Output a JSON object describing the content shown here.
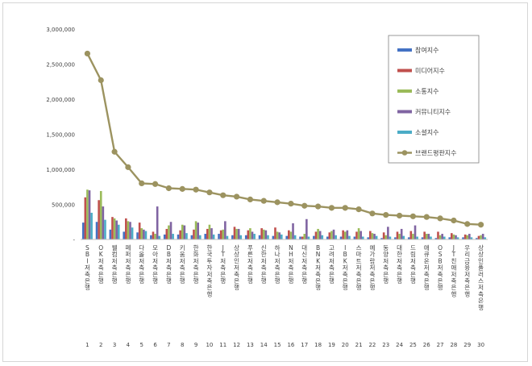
{
  "chart_data": {
    "type": "bar",
    "title": "",
    "xlabel": "",
    "ylabel": "",
    "ylim": [
      0,
      3000000
    ],
    "yticks": [
      0,
      500000,
      1000000,
      1500000,
      2000000,
      2500000,
      3000000
    ],
    "ytick_labels": [
      "-",
      "500,000",
      "1,000,000",
      "1,500,000",
      "2,000,000",
      "2,500,000",
      "3,000,000"
    ],
    "grid": false,
    "legend_position": "top-right",
    "categories": [
      "SBI저축은행",
      "OK저축은행",
      "웰컴저축은행",
      "페퍼저축은행",
      "다올저축은행",
      "모아저축은행",
      "DB저축은행",
      "키움저축은행",
      "한화저축은행",
      "한국투자저축은행",
      "JT저축은행",
      "상상인저축은행",
      "푸른저축은행",
      "신한저축은행",
      "하나저축은행",
      "NH저축은행",
      "대신저축은행",
      "BNK저축은행",
      "고려저축은행",
      "IBK저축은행",
      "스마트저축은행",
      "예가람저축은행",
      "동양저축은행",
      "대한저축은행",
      "드림저축은행",
      "애큐온저축은행",
      "OSB저축은행",
      "JT친애저축은행",
      "우리금융저축은행",
      "상상인플러스저축은행"
    ],
    "rank_labels": [
      "1",
      "2",
      "3",
      "4",
      "5",
      "6",
      "7",
      "8",
      "9",
      "10",
      "11",
      "12",
      "13",
      "14",
      "15",
      "16",
      "17",
      "18",
      "19",
      "20",
      "21",
      "22",
      "23",
      "24",
      "25",
      "26",
      "27",
      "28",
      "29",
      "30"
    ],
    "series": [
      {
        "name": "참여지수",
        "type": "bar",
        "color": "#4472c4",
        "values": [
          240000,
          250000,
          140000,
          110000,
          100000,
          60000,
          70000,
          70000,
          60000,
          80000,
          80000,
          60000,
          60000,
          60000,
          50000,
          50000,
          40000,
          50000,
          40000,
          40000,
          40000,
          30000,
          20000,
          30000,
          30000,
          30000,
          20000,
          30000,
          30000,
          20000
        ]
      },
      {
        "name": "미디어지수",
        "type": "bar",
        "color": "#c0504d",
        "values": [
          600000,
          560000,
          320000,
          300000,
          240000,
          110000,
          150000,
          130000,
          140000,
          150000,
          130000,
          180000,
          130000,
          160000,
          170000,
          130000,
          40000,
          110000,
          100000,
          130000,
          110000,
          120000,
          100000,
          110000,
          120000,
          110000,
          110000,
          90000,
          70000,
          50000
        ]
      },
      {
        "name": "소통지수",
        "type": "bar",
        "color": "#9bbb59",
        "values": [
          710000,
          690000,
          300000,
          260000,
          160000,
          80000,
          200000,
          210000,
          260000,
          210000,
          140000,
          150000,
          160000,
          140000,
          110000,
          110000,
          80000,
          150000,
          120000,
          110000,
          160000,
          90000,
          60000,
          80000,
          80000,
          80000,
          60000,
          70000,
          60000,
          60000
        ]
      },
      {
        "name": "커뮤니티지수",
        "type": "bar",
        "color": "#8064a2",
        "values": [
          700000,
          470000,
          270000,
          250000,
          140000,
          470000,
          250000,
          200000,
          240000,
          160000,
          260000,
          150000,
          110000,
          130000,
          100000,
          230000,
          290000,
          120000,
          140000,
          130000,
          120000,
          80000,
          180000,
          150000,
          200000,
          80000,
          80000,
          60000,
          80000,
          80000
        ]
      },
      {
        "name": "소셜지수",
        "type": "bar",
        "color": "#4bacc6",
        "values": [
          380000,
          280000,
          210000,
          170000,
          120000,
          50000,
          80000,
          90000,
          60000,
          70000,
          50000,
          60000,
          80000,
          60000,
          70000,
          60000,
          40000,
          60000,
          60000,
          50000,
          40000,
          50000,
          40000,
          50000,
          40000,
          40000,
          40000,
          30000,
          30000,
          30000
        ]
      },
      {
        "name": "브랜드평판지수",
        "type": "line",
        "color": "#9c9360",
        "values": [
          2650000,
          2270000,
          1250000,
          1030000,
          800000,
          790000,
          730000,
          720000,
          710000,
          670000,
          630000,
          610000,
          570000,
          550000,
          530000,
          510000,
          480000,
          470000,
          450000,
          450000,
          430000,
          370000,
          350000,
          340000,
          330000,
          320000,
          300000,
          270000,
          220000,
          210000
        ]
      }
    ]
  }
}
